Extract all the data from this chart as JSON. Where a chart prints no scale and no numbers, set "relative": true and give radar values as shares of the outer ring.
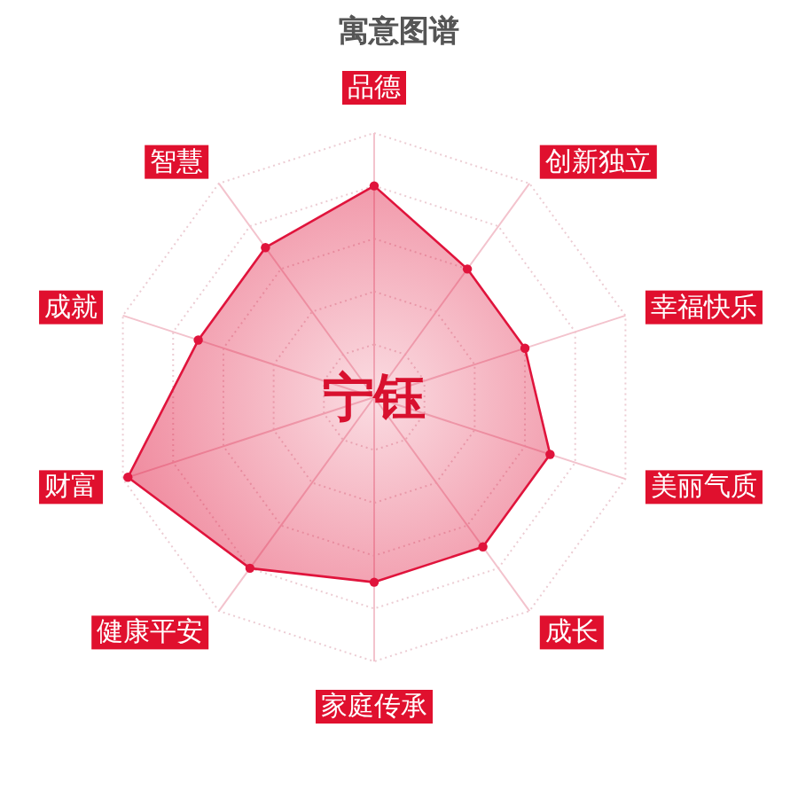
{
  "chart_data": {
    "type": "radar",
    "title": "寓意图谱",
    "categories": [
      "品德",
      "创新独立",
      "幸福快乐",
      "美丽气质",
      "成长",
      "家庭传承",
      "健康平安",
      "财富",
      "成就",
      "智慧"
    ],
    "series": [
      {
        "color": "#e0143c",
        "values": [
          0.8,
          0.6,
          0.6,
          0.7,
          0.7,
          0.7,
          0.8,
          0.98,
          0.7,
          0.7
        ]
      }
    ],
    "relative": true,
    "grid": true,
    "marker": "circle",
    "annotations": [
      "宁钰"
    ]
  }
}
